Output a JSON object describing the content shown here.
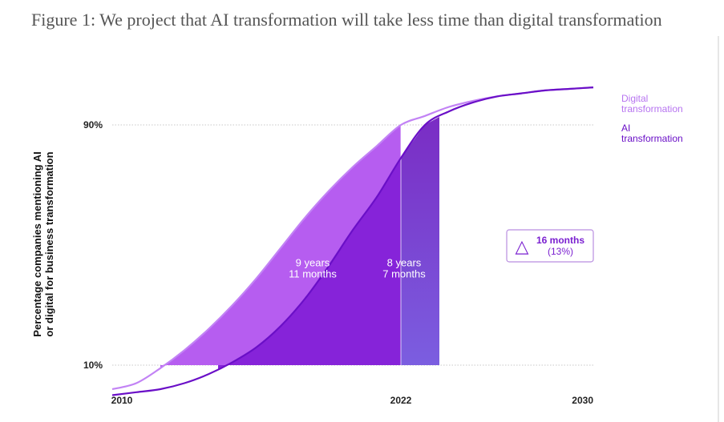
{
  "title": "Figure 1: We project that AI transformation will take less time than digital transformation",
  "colors": {
    "digital_line": "#c283f5",
    "ai_line": "#6a0fc7",
    "digital_fill": "#b65df0",
    "ai_fill": "#8623d9",
    "gap_fill_top": "#7a2cc4",
    "gap_fill_bottom": "#7b5ee0",
    "gap_fill_light": "#ffffff",
    "legend_digital": "#b774f0",
    "legend_ai": "#6a0fc7",
    "grid": "#c8c8c8",
    "callout_border": "#b98ee0",
    "callout_text": "#7a1fd0"
  },
  "chart_data": {
    "type": "area",
    "x_axis": {
      "ticks": [
        "2010",
        "2022",
        "2030"
      ],
      "range": [
        2010,
        2030
      ]
    },
    "y_axis": {
      "ticks": [
        "90%",
        "10%"
      ],
      "label_lines": [
        "Percentage companies mentioning AI",
        "or digital for business transformation"
      ]
    },
    "series": [
      {
        "name": "Digital transformation",
        "x": [
          2010,
          2011,
          2012,
          2013,
          2014,
          2015,
          2016,
          2017,
          2018,
          2019,
          2020,
          2021,
          2022,
          2023,
          2024,
          2025,
          2026,
          2027,
          2028,
          2029,
          2030
        ],
        "y": [
          2,
          4,
          9,
          15,
          22,
          30,
          39,
          49,
          59,
          68,
          76,
          83,
          90,
          93,
          96,
          98,
          99.5,
          100.5,
          101.5,
          102,
          102.5
        ]
      },
      {
        "name": "AI transformation",
        "x": [
          2010,
          2011,
          2012,
          2013,
          2014,
          2015,
          2016,
          2017,
          2018,
          2019,
          2020,
          2021,
          2022,
          2023,
          2024,
          2025,
          2026,
          2027,
          2028,
          2029,
          2030
        ],
        "y": [
          0,
          1,
          2,
          4,
          7,
          11,
          16,
          23,
          32,
          43,
          55,
          66,
          79,
          90,
          94.5,
          97.5,
          99.5,
          100.5,
          101.5,
          102,
          102.5
        ]
      }
    ],
    "shaded_regions": {
      "digital": {
        "x_start": 2012,
        "x_end": 2022
      },
      "ai": {
        "x_start": 2014.4,
        "x_end": 2022
      },
      "gap": {
        "x_start": 2022,
        "x_end": 2023.6
      }
    },
    "annotations": [
      {
        "lines": [
          "9 years",
          "11 months"
        ],
        "x": 2018.4,
        "y": 43
      },
      {
        "lines": [
          "8 years",
          "7 months"
        ],
        "x": 2022.2,
        "y": 43
      }
    ],
    "callout": {
      "lines": [
        "16 months",
        "(13%)"
      ],
      "symbol": "△"
    },
    "legend": [
      {
        "lines": [
          "Digital",
          "transformation"
        ]
      },
      {
        "lines": [
          "AI",
          "transformation"
        ]
      }
    ]
  }
}
